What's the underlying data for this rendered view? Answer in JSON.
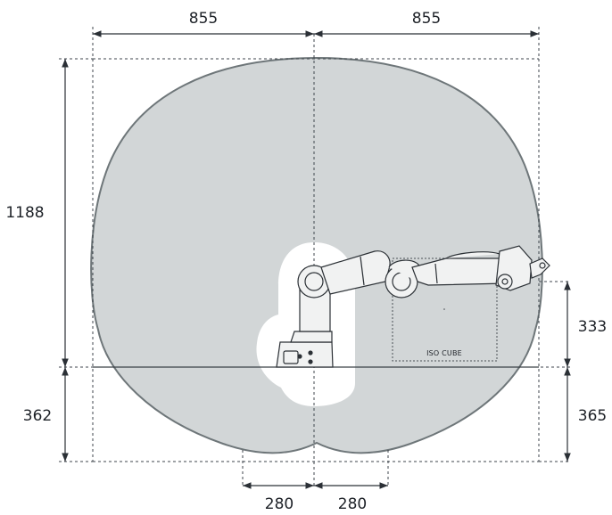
{
  "dimensions": {
    "top_left": "855",
    "top_right": "855",
    "left_upper": "1188",
    "left_lower": "362",
    "right_upper": "333",
    "right_lower": "365",
    "bottom_left": "280",
    "bottom_right": "280"
  },
  "labels": {
    "iso_cube": "ISO CUBE"
  },
  "colors": {
    "workspace_fill": "#d2d6d7",
    "workspace_stroke": "#6e7679",
    "robot_body": "#f1f2f2",
    "robot_outline": "#2c3136",
    "dimension_line": "#2b3036"
  }
}
